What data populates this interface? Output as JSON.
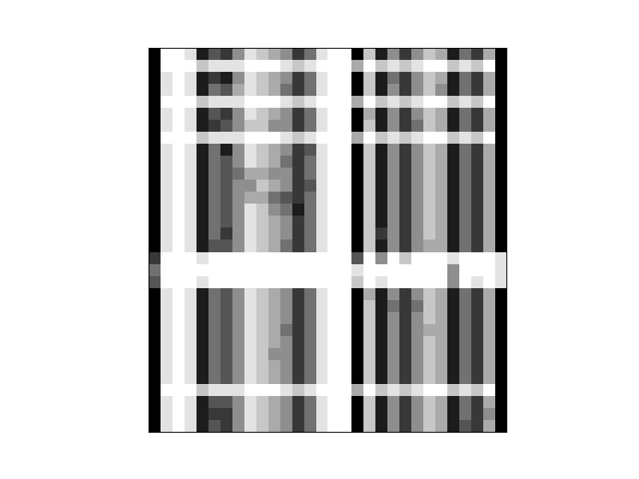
{
  "chart_data": {
    "type": "heatmap",
    "color": "gray",
    "tick_labels": false,
    "color_range": [
      0,
      9
    ],
    "cells": [
      [
        0,
        9,
        9,
        8,
        1,
        3,
        2,
        5,
        8,
        7,
        6,
        5,
        2,
        4,
        8,
        9,
        9,
        0,
        7,
        1,
        5,
        2,
        5,
        7,
        6,
        1,
        4,
        2,
        6,
        0
      ],
      [
        0,
        9,
        9,
        9,
        7,
        8,
        8,
        8,
        9,
        9,
        9,
        8,
        7,
        8,
        9,
        9,
        9,
        6,
        9,
        7,
        8,
        7,
        8,
        9,
        9,
        7,
        8,
        7,
        9,
        0
      ],
      [
        0,
        8,
        9,
        8,
        1,
        2,
        1,
        5,
        8,
        7,
        6,
        5,
        2,
        4,
        8,
        9,
        9,
        0,
        7,
        1,
        4,
        2,
        5,
        7,
        6,
        1,
        4,
        2,
        6,
        0
      ],
      [
        0,
        8,
        9,
        8,
        1,
        4,
        3,
        6,
        8,
        7,
        6,
        4,
        2,
        4,
        8,
        9,
        9,
        0,
        7,
        1,
        5,
        2,
        5,
        7,
        5,
        1,
        4,
        2,
        6,
        0
      ],
      [
        0,
        9,
        9,
        9,
        7,
        8,
        8,
        8,
        9,
        9,
        9,
        8,
        7,
        8,
        9,
        9,
        9,
        6,
        9,
        7,
        8,
        7,
        8,
        9,
        9,
        7,
        8,
        7,
        9,
        0
      ],
      [
        0,
        8,
        9,
        8,
        1,
        3,
        2,
        5,
        8,
        7,
        6,
        5,
        2,
        4,
        8,
        9,
        9,
        0,
        6,
        1,
        5,
        2,
        5,
        7,
        6,
        1,
        4,
        2,
        6,
        0
      ],
      [
        0,
        8,
        9,
        8,
        1,
        2,
        3,
        5,
        7,
        7,
        5,
        5,
        2,
        4,
        8,
        9,
        9,
        0,
        7,
        1,
        5,
        2,
        4,
        7,
        6,
        1,
        4,
        2,
        6,
        0
      ],
      [
        0,
        9,
        9,
        9,
        7,
        8,
        8,
        8,
        9,
        9,
        9,
        8,
        7,
        8,
        9,
        9,
        9,
        6,
        9,
        7,
        8,
        7,
        8,
        9,
        9,
        7,
        8,
        7,
        9,
        0
      ],
      [
        0,
        8,
        9,
        8,
        1,
        4,
        1,
        5,
        8,
        7,
        6,
        5,
        2,
        3,
        8,
        9,
        9,
        0,
        7,
        1,
        5,
        2,
        5,
        7,
        6,
        1,
        4,
        2,
        6,
        0
      ],
      [
        0,
        8,
        9,
        8,
        1,
        4,
        3,
        5,
        8,
        7,
        6,
        4,
        2,
        4,
        8,
        9,
        9,
        0,
        7,
        1,
        5,
        2,
        5,
        7,
        6,
        1,
        4,
        2,
        6,
        0
      ],
      [
        0,
        8,
        9,
        8,
        1,
        4,
        3,
        4,
        6,
        6,
        5,
        5,
        2,
        4,
        8,
        9,
        9,
        0,
        7,
        1,
        5,
        2,
        5,
        7,
        6,
        1,
        4,
        2,
        6,
        0
      ],
      [
        0,
        8,
        9,
        8,
        1,
        4,
        3,
        5,
        5,
        7,
        6,
        5,
        2,
        3,
        8,
        9,
        9,
        0,
        7,
        1,
        5,
        2,
        5,
        7,
        6,
        1,
        4,
        2,
        6,
        0
      ],
      [
        0,
        8,
        9,
        8,
        1,
        4,
        3,
        5,
        6,
        6,
        4,
        3,
        2,
        4,
        8,
        9,
        9,
        0,
        7,
        1,
        5,
        2,
        5,
        7,
        6,
        1,
        4,
        2,
        6,
        0
      ],
      [
        0,
        8,
        9,
        8,
        1,
        4,
        3,
        5,
        8,
        7,
        5,
        4,
        1,
        4,
        8,
        9,
        9,
        0,
        7,
        1,
        5,
        2,
        5,
        7,
        6,
        1,
        4,
        2,
        6,
        0
      ],
      [
        0,
        8,
        9,
        8,
        1,
        4,
        3,
        5,
        8,
        7,
        6,
        5,
        2,
        4,
        8,
        9,
        9,
        0,
        7,
        1,
        5,
        2,
        5,
        7,
        6,
        1,
        4,
        2,
        6,
        0
      ],
      [
        0,
        8,
        9,
        8,
        1,
        4,
        2,
        5,
        8,
        7,
        6,
        5,
        2,
        4,
        8,
        9,
        9,
        0,
        7,
        2,
        5,
        2,
        5,
        7,
        6,
        1,
        4,
        2,
        6,
        0
      ],
      [
        0,
        8,
        9,
        8,
        1,
        3,
        3,
        5,
        8,
        7,
        6,
        4,
        2,
        4,
        8,
        9,
        9,
        0,
        7,
        1,
        5,
        2,
        5,
        6,
        6,
        1,
        4,
        2,
        6,
        0
      ],
      [
        2,
        9,
        9,
        9,
        8,
        9,
        9,
        9,
        9,
        9,
        9,
        9,
        9,
        9,
        9,
        9,
        9,
        3,
        9,
        5,
        9,
        7,
        9,
        9,
        9,
        8,
        9,
        9,
        9,
        8
      ],
      [
        4,
        9,
        9,
        9,
        9,
        9,
        9,
        9,
        9,
        9,
        9,
        9,
        9,
        9,
        9,
        9,
        9,
        8,
        9,
        9,
        9,
        9,
        9,
        9,
        9,
        5,
        9,
        9,
        9,
        8
      ],
      [
        3,
        9,
        9,
        9,
        8,
        9,
        9,
        9,
        9,
        9,
        9,
        9,
        9,
        9,
        9,
        9,
        9,
        7,
        9,
        8,
        9,
        9,
        9,
        9,
        9,
        5,
        9,
        8,
        9,
        8
      ],
      [
        0,
        8,
        9,
        8,
        1,
        4,
        3,
        5,
        8,
        7,
        6,
        5,
        2,
        4,
        8,
        9,
        9,
        0,
        6,
        1,
        5,
        2,
        5,
        7,
        6,
        1,
        4,
        2,
        6,
        0
      ],
      [
        0,
        8,
        9,
        8,
        1,
        4,
        3,
        5,
        8,
        7,
        6,
        5,
        2,
        4,
        8,
        9,
        9,
        0,
        7,
        1,
        4,
        2,
        4,
        7,
        6,
        1,
        4,
        2,
        6,
        0
      ],
      [
        0,
        8,
        9,
        8,
        1,
        4,
        3,
        5,
        8,
        7,
        6,
        5,
        2,
        4,
        8,
        9,
        9,
        0,
        7,
        1,
        5,
        2,
        5,
        7,
        6,
        1,
        4,
        2,
        6,
        0
      ],
      [
        0,
        8,
        9,
        8,
        1,
        4,
        3,
        5,
        8,
        7,
        6,
        4,
        2,
        4,
        8,
        9,
        9,
        0,
        7,
        1,
        5,
        2,
        5,
        6,
        6,
        1,
        4,
        2,
        6,
        0
      ],
      [
        0,
        8,
        9,
        8,
        1,
        4,
        3,
        5,
        8,
        7,
        6,
        5,
        2,
        4,
        8,
        9,
        9,
        0,
        7,
        1,
        5,
        2,
        5,
        7,
        6,
        1,
        4,
        2,
        6,
        0
      ],
      [
        0,
        8,
        9,
        8,
        1,
        4,
        3,
        5,
        8,
        7,
        5,
        5,
        2,
        4,
        8,
        9,
        9,
        0,
        7,
        1,
        5,
        2,
        5,
        7,
        6,
        1,
        4,
        2,
        6,
        0
      ],
      [
        0,
        8,
        9,
        8,
        1,
        4,
        3,
        5,
        8,
        7,
        6,
        5,
        2,
        4,
        8,
        9,
        9,
        0,
        7,
        1,
        5,
        2,
        5,
        7,
        6,
        1,
        4,
        2,
        6,
        0
      ],
      [
        0,
        8,
        9,
        8,
        1,
        4,
        3,
        5,
        8,
        7,
        6,
        5,
        2,
        4,
        8,
        9,
        9,
        0,
        7,
        1,
        5,
        2,
        5,
        7,
        6,
        1,
        4,
        2,
        6,
        0
      ],
      [
        0,
        9,
        9,
        9,
        7,
        8,
        8,
        8,
        9,
        9,
        9,
        8,
        7,
        8,
        9,
        9,
        9,
        6,
        9,
        7,
        8,
        7,
        8,
        9,
        9,
        7,
        8,
        7,
        9,
        0
      ],
      [
        0,
        8,
        9,
        8,
        1,
        3,
        3,
        5,
        8,
        7,
        6,
        5,
        2,
        4,
        8,
        9,
        9,
        0,
        7,
        1,
        5,
        2,
        5,
        7,
        6,
        1,
        4,
        2,
        6,
        0
      ],
      [
        0,
        8,
        9,
        8,
        1,
        2,
        2,
        5,
        8,
        7,
        6,
        5,
        2,
        4,
        8,
        9,
        9,
        0,
        7,
        1,
        5,
        2,
        5,
        7,
        6,
        1,
        4,
        2,
        5,
        0
      ],
      [
        0,
        8,
        9,
        8,
        1,
        3,
        2,
        5,
        8,
        7,
        6,
        5,
        2,
        4,
        8,
        9,
        9,
        0,
        7,
        1,
        5,
        2,
        5,
        7,
        6,
        1,
        3,
        2,
        6,
        0
      ]
    ]
  }
}
